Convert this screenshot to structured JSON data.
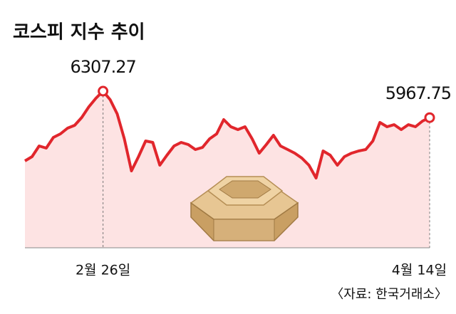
{
  "chart_data": {
    "type": "line",
    "title": "코스피 지수 추이",
    "source": "〈자료: 한국거래소〉",
    "categories": [
      null,
      null,
      null,
      null,
      null,
      null,
      null,
      null,
      null,
      null,
      null,
      "2월 26일",
      null,
      null,
      null,
      null,
      null,
      null,
      null,
      null,
      null,
      null,
      null,
      null,
      null,
      null,
      null,
      null,
      null,
      null,
      null,
      null,
      null,
      null,
      null,
      null,
      null,
      null,
      null,
      null,
      null,
      null,
      null,
      null,
      null,
      null,
      null,
      null,
      null,
      null,
      null,
      null,
      null,
      null,
      null,
      null,
      null,
      "4월 14일"
    ],
    "values": [
      5413,
      5468,
      5605,
      5577,
      5714,
      5760,
      5833,
      5869,
      5970,
      6107,
      6216,
      6307.27,
      6198,
      6015,
      5696,
      5285,
      5468,
      5669,
      5650,
      5358,
      5486,
      5605,
      5650,
      5623,
      5559,
      5586,
      5696,
      5760,
      5942,
      5851,
      5815,
      5851,
      5696,
      5513,
      5623,
      5742,
      5605,
      5559,
      5513,
      5450,
      5358,
      5194,
      5541,
      5486,
      5358,
      5468,
      5513,
      5541,
      5559,
      5669,
      5906,
      5851,
      5878,
      5815,
      5878,
      5851,
      5924,
      5967.75
    ],
    "value_labels": [
      null,
      null,
      null,
      null,
      null,
      null,
      null,
      null,
      null,
      null,
      null,
      "6307.27",
      null,
      null,
      null,
      null,
      null,
      null,
      null,
      null,
      null,
      null,
      null,
      null,
      null,
      null,
      null,
      null,
      null,
      null,
      null,
      null,
      null,
      null,
      null,
      null,
      null,
      null,
      null,
      null,
      null,
      null,
      null,
      null,
      null,
      null,
      null,
      null,
      null,
      null,
      null,
      null,
      null,
      null,
      null,
      null,
      null,
      "5967.75"
    ],
    "color": "#e1262c",
    "area_color": "#fde3e3",
    "ylim": [
      4300,
      6800
    ]
  }
}
